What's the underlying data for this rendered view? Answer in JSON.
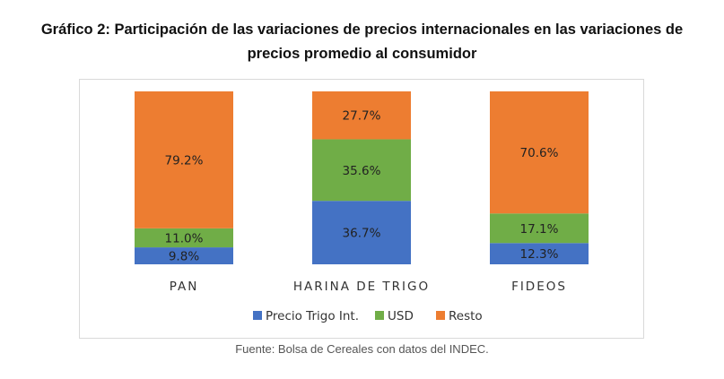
{
  "header": {
    "title_line1": "Gráfico 2: Participación de las variaciones de precios internacionales en las variaciones de",
    "title_line2": "precios promedio al consumidor"
  },
  "footer": {
    "source": "Fuente: Bolsa de Cereales con datos del INDEC."
  },
  "chart_data": {
    "type": "bar",
    "stacked": true,
    "title": "Gráfico 2: Participación de las variaciones de precios internacionales en las variaciones de precios promedio al consumidor",
    "categories": [
      "PAN",
      "HARINA DE TRIGO",
      "FIDEOS"
    ],
    "series": [
      {
        "name": "Precio Trigo Int.",
        "color": "#4472C4",
        "values": [
          9.8,
          36.7,
          12.3
        ],
        "labels": [
          "9.8%",
          "36.7%",
          "12.3%"
        ]
      },
      {
        "name": "USD",
        "color": "#70AD47",
        "values": [
          11.0,
          35.6,
          17.1
        ],
        "labels": [
          "11.0%",
          "35.6%",
          "17.1%"
        ]
      },
      {
        "name": "Resto",
        "color": "#ED7D31",
        "values": [
          79.2,
          27.7,
          70.6
        ],
        "labels": [
          "79.2%",
          "27.7%",
          "70.6%"
        ]
      }
    ],
    "ylim": [
      0,
      100
    ],
    "legend_position": "bottom",
    "grid": false
  }
}
